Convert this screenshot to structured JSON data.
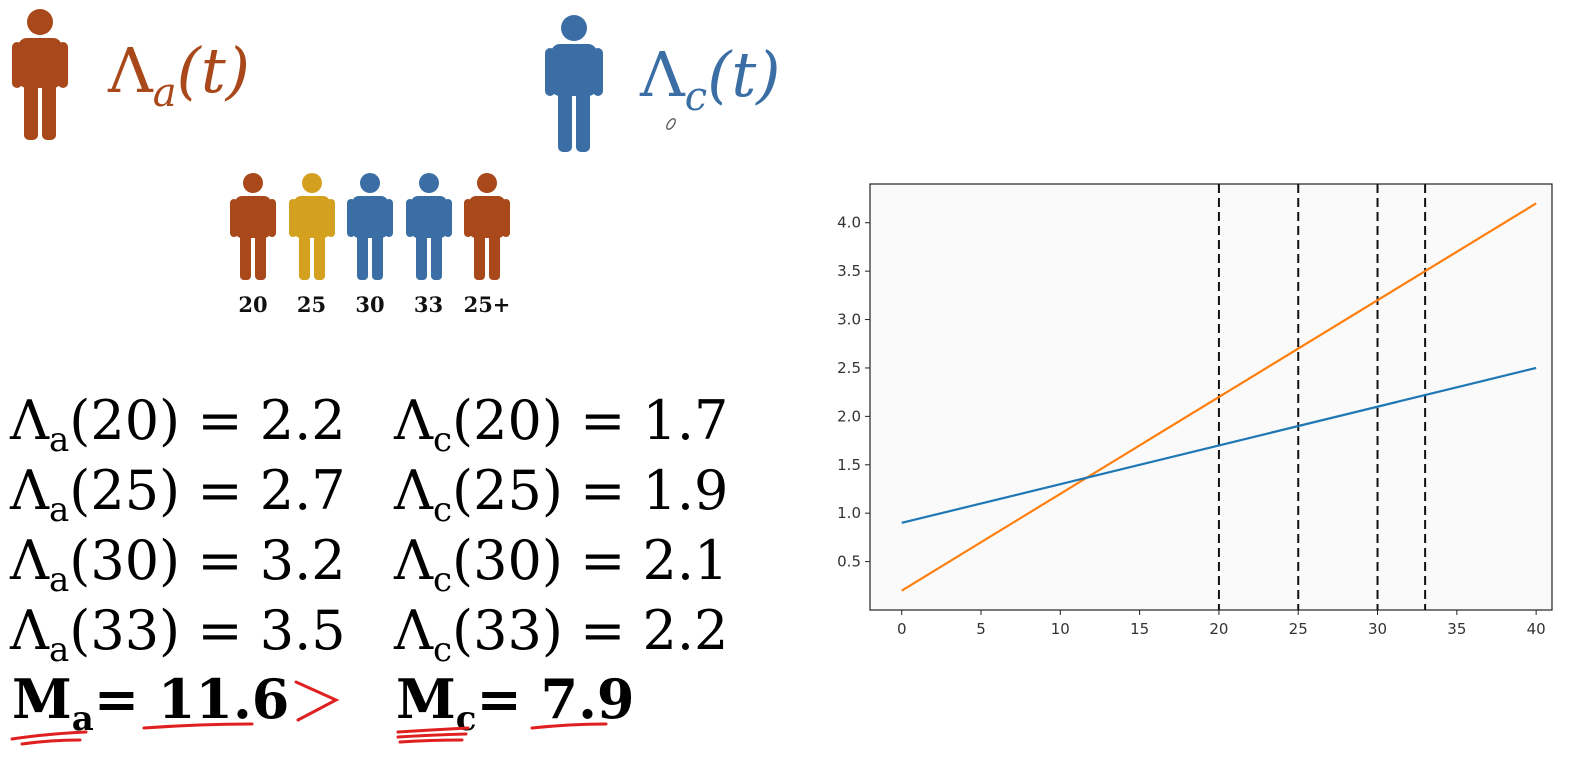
{
  "header": {
    "lambda_a": {
      "symbol": "Λ",
      "sub": "a",
      "arg": "(t)",
      "color": "#a8481b"
    },
    "lambda_c": {
      "symbol": "Λ",
      "sub": "c",
      "arg": "(t)",
      "color": "#3a6ea5"
    }
  },
  "people_row": [
    {
      "age": "20",
      "color": "#a8481b"
    },
    {
      "age": "25",
      "color": "#d4a020"
    },
    {
      "age": "30",
      "color": "#3a6ea5"
    },
    {
      "age": "33",
      "color": "#3a6ea5"
    },
    {
      "age": "25+",
      "color": "#a8481b"
    }
  ],
  "equations_a": [
    {
      "arg": "(20)",
      "value": "= 2.2"
    },
    {
      "arg": "(25)",
      "value": "= 2.7"
    },
    {
      "arg": "(30)",
      "value": "= 3.2"
    },
    {
      "arg": "(33)",
      "value": "= 3.5"
    }
  ],
  "equations_c": [
    {
      "arg": "(20)",
      "value": "= 1.7"
    },
    {
      "arg": "(25)",
      "value": "= 1.9"
    },
    {
      "arg": "(30)",
      "value": "= 2.1"
    },
    {
      "arg": "(33)",
      "value": "= 2.2"
    }
  ],
  "summary": {
    "ma_label": "M",
    "ma_sub": "a",
    "ma_value": "= 11.6",
    "comparator": ">",
    "mc_label": "M",
    "mc_sub": "c",
    "mc_value": "= 7.9",
    "annotation_color": "#e02020"
  },
  "chart_data": {
    "type": "line",
    "title": "",
    "xlabel": "",
    "ylabel": "",
    "xlim": [
      -2,
      41
    ],
    "ylim": [
      0.0,
      4.4
    ],
    "xticks": [
      0,
      5,
      10,
      15,
      20,
      25,
      30,
      35,
      40
    ],
    "yticks": [
      0.5,
      1.0,
      1.5,
      2.0,
      2.5,
      3.0,
      3.5,
      4.0
    ],
    "series": [
      {
        "color": "#ff7f0e",
        "x": [
          0,
          40
        ],
        "y": [
          0.2,
          4.2
        ]
      },
      {
        "color": "#1f77b4",
        "x": [
          0,
          40
        ],
        "y": [
          0.9,
          2.5
        ]
      }
    ],
    "vlines": [
      20,
      25,
      30,
      33
    ]
  }
}
